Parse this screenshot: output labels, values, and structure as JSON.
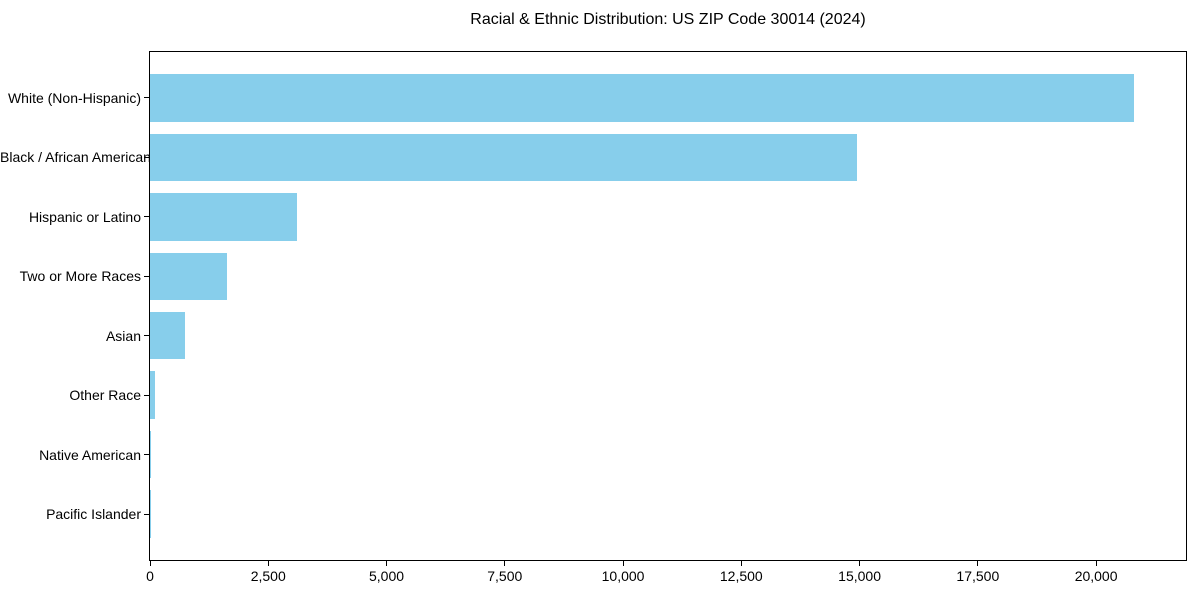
{
  "colors": {
    "bar": "#87CEEB",
    "text": "#000000",
    "frame": "#000000",
    "background": "#FFFFFF"
  },
  "chart_data": {
    "type": "bar",
    "orientation": "horizontal",
    "title": "Racial & Ethnic Distribution: US ZIP Code 30014 (2024)",
    "xlabel": "",
    "ylabel": "",
    "categories": [
      "White (Non-Hispanic)",
      "Black / African American",
      "Hispanic or Latino",
      "Two or More Races",
      "Asian",
      "Other Race",
      "Native American",
      "Pacific Islander"
    ],
    "values": [
      20800,
      14950,
      3100,
      1620,
      740,
      110,
      30,
      10
    ],
    "xlim": [
      0,
      21900
    ],
    "xticks": [
      0,
      2500,
      5000,
      7500,
      10000,
      12500,
      15000,
      17500,
      20000
    ],
    "xtick_labels": [
      "0",
      "2,500",
      "5,000",
      "7,500",
      "10,000",
      "12,500",
      "15,000",
      "17,500",
      "20,000"
    ],
    "grid": false,
    "legend": null,
    "bar_color": "#87CEEB"
  }
}
